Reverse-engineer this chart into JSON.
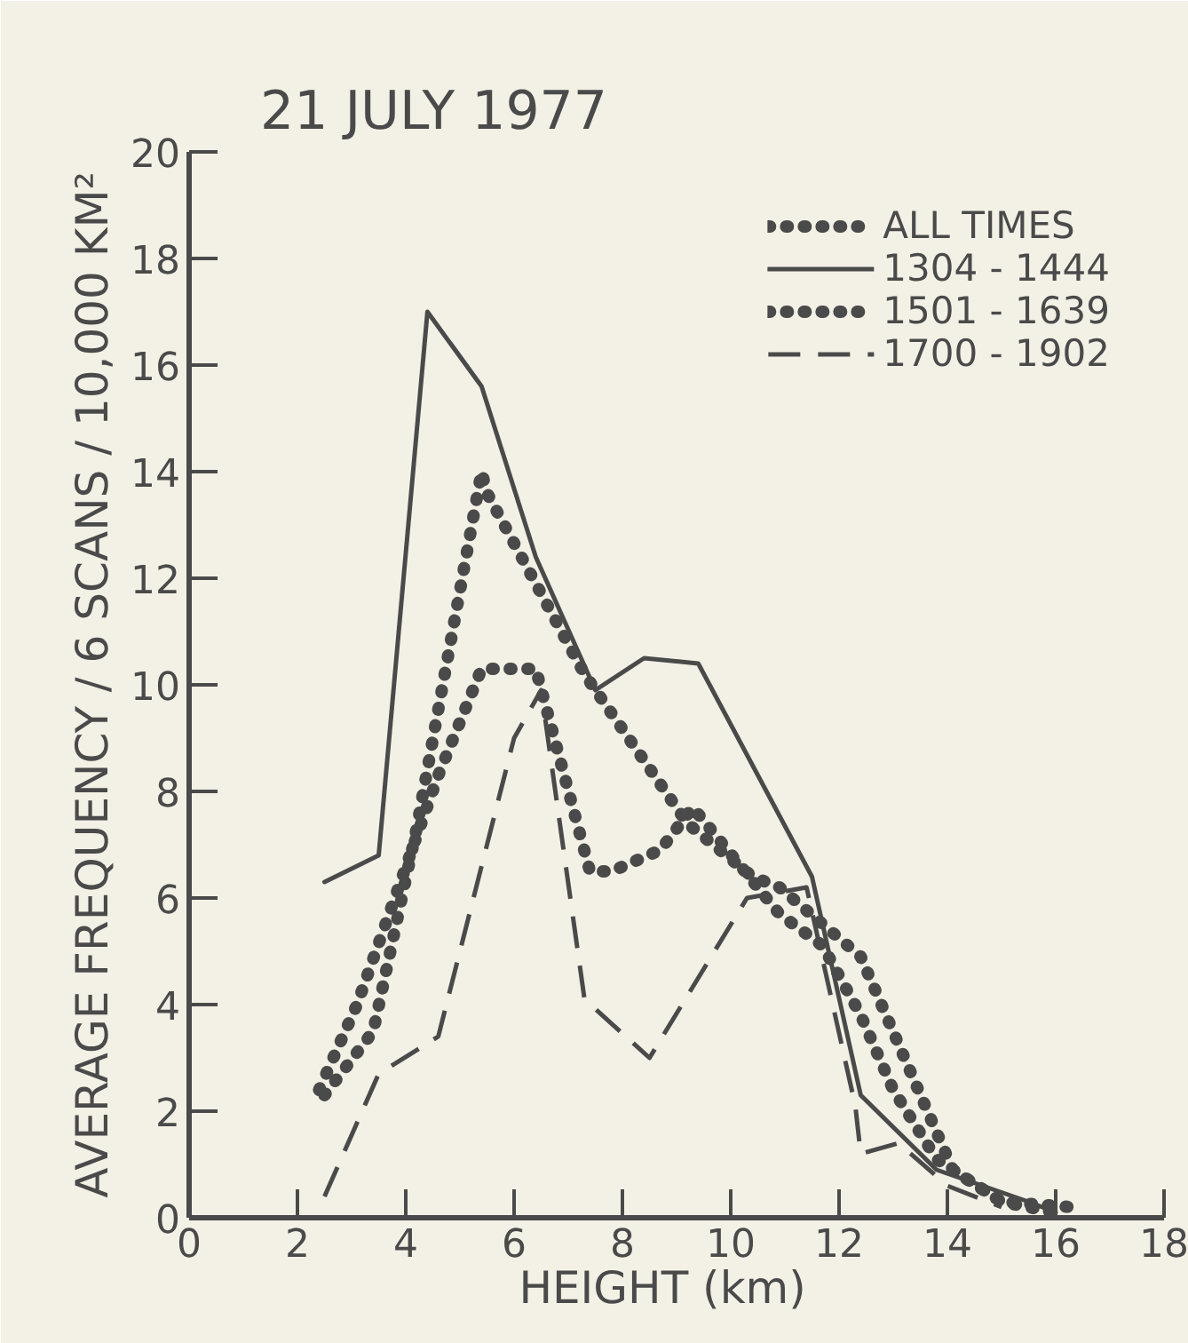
{
  "chart_data": {
    "type": "line",
    "title": "21 JULY 1977",
    "xlabel": "HEIGHT   (km)",
    "ylabel": "AVERAGE FREQUENCY / 6 SCANS / 10,000 KM²",
    "xlim": [
      0,
      18
    ],
    "ylim": [
      0,
      20
    ],
    "xticks": [
      0,
      2,
      4,
      6,
      8,
      10,
      12,
      14,
      16,
      18
    ],
    "yticks": [
      0,
      2,
      4,
      6,
      8,
      10,
      12,
      14,
      16,
      18,
      20
    ],
    "grid": false,
    "legend": "top right",
    "series": [
      {
        "name": "ALL TIMES",
        "color": "#4a4a4a",
        "line_style": "dotted",
        "x": [
          2.4,
          3.1,
          4.6,
          5.4,
          6.4,
          7.4,
          7.8,
          8.7,
          9.3,
          10.9,
          11.7,
          12.4,
          13.0,
          13.8,
          15.0,
          16.0
        ],
        "values": [
          2.4,
          4.0,
          8.3,
          10.3,
          10.3,
          6.5,
          6.5,
          6.9,
          7.7,
          5.7,
          5.1,
          3.8,
          2.4,
          1.1,
          0.3,
          0.1
        ]
      },
      {
        "name": "1304 - 1444",
        "color": "#4a4a4a",
        "line_style": "solid",
        "x": [
          2.5,
          3.5,
          4.4,
          5.4,
          6.4,
          7.5,
          8.4,
          9.4,
          11.5,
          12.4,
          13.8,
          15.5,
          16.0
        ],
        "values": [
          6.3,
          6.8,
          17.0,
          15.6,
          12.4,
          9.9,
          10.5,
          10.4,
          6.4,
          2.3,
          0.9,
          0.3,
          0.1
        ]
      },
      {
        "name": "1501 - 1639",
        "color": "#4a4a4a",
        "line_style": "dotted",
        "x": [
          2.5,
          3.4,
          4.2,
          5.4,
          5.5,
          7.3,
          9.2,
          10.4,
          10.9,
          12.4,
          14.1,
          15.0,
          16.3
        ],
        "values": [
          2.3,
          3.5,
          7.3,
          14.0,
          13.6,
          10.2,
          7.4,
          6.4,
          6.2,
          4.9,
          0.9,
          0.3,
          0.2
        ]
      },
      {
        "name": "1700 - 1902",
        "color": "#4a4a4a",
        "line_style": "dashed",
        "x": [
          2.5,
          3.5,
          4.6,
          6.0,
          6.5,
          7.3,
          8.5,
          10.3,
          11.4,
          12.3,
          12.4,
          13.1,
          14.0,
          15.0
        ],
        "values": [
          0.4,
          2.7,
          3.4,
          9.0,
          9.9,
          4.1,
          3.0,
          6.0,
          6.2,
          2.1,
          1.2,
          1.4,
          0.6,
          0.2
        ]
      }
    ]
  }
}
